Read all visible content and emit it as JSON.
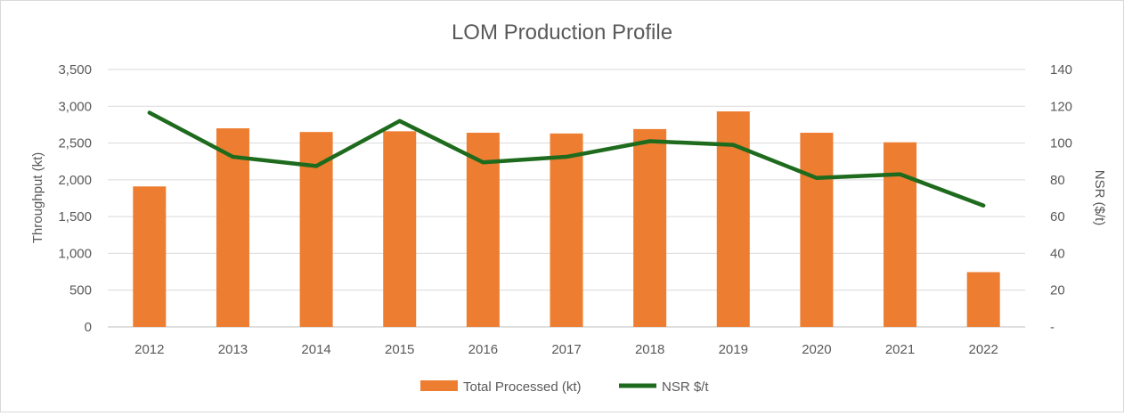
{
  "chart_data": {
    "type": "bar",
    "title": "LOM Production Profile",
    "xlabel": "",
    "ylabel": "Throughput (kt)",
    "y2label": "NSR ($/t)",
    "categories": [
      "2012",
      "2013",
      "2014",
      "2015",
      "2016",
      "2017",
      "2018",
      "2019",
      "2020",
      "2021",
      "2022"
    ],
    "ylim": [
      0,
      3500
    ],
    "y2lim": [
      0,
      140
    ],
    "yticks": [
      "0",
      "500",
      "1,000",
      "1,500",
      "2,000",
      "2,500",
      "3,000",
      "3,500"
    ],
    "y2ticks": [
      "-",
      "20",
      "40",
      "60",
      "80",
      "100",
      "120",
      "140"
    ],
    "grid": true,
    "legend_position": "bottom",
    "series": [
      {
        "name": "Total Processed (kt)",
        "type": "bar",
        "axis": "left",
        "color": "#ED7D31",
        "values": [
          1910,
          2700,
          2650,
          2660,
          2640,
          2630,
          2690,
          2930,
          2640,
          2510,
          745
        ]
      },
      {
        "name": "NSR $/t",
        "type": "line",
        "axis": "right",
        "color": "#1E6B1E",
        "values": [
          116.5,
          92.5,
          87.5,
          112,
          89.5,
          92.5,
          101,
          99,
          81,
          83,
          66
        ]
      }
    ]
  }
}
